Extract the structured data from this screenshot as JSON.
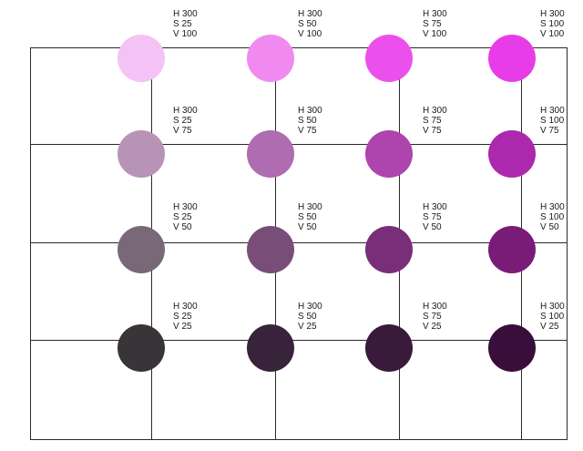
{
  "swatches": [
    {
      "h": "H 300",
      "s": "S 25",
      "v": "V 100",
      "color": "#f4c2f4"
    },
    {
      "h": "H 300",
      "s": "S 50",
      "v": "V 100",
      "color": "#f08af0"
    },
    {
      "h": "H 300",
      "s": "S 75",
      "v": "V 100",
      "color": "#ec50ec"
    },
    {
      "h": "H 300",
      "s": "S 100",
      "v": "V 100",
      "color": "#e83ce8"
    },
    {
      "h": "H 300",
      "s": "S 25",
      "v": "V 75",
      "color": "#b893b8"
    },
    {
      "h": "H 300",
      "s": "S 50",
      "v": "V 75",
      "color": "#b06cb0"
    },
    {
      "h": "H 300",
      "s": "S 75",
      "v": "V 75",
      "color": "#ae44ae"
    },
    {
      "h": "H 300",
      "s": "S 100",
      "v": "V 75",
      "color": "#ac28ac"
    },
    {
      "h": "H 300",
      "s": "S 25",
      "v": "V 50",
      "color": "#786878"
    },
    {
      "h": "H 300",
      "s": "S 50",
      "v": "V 50",
      "color": "#784e78"
    },
    {
      "h": "H 300",
      "s": "S 75",
      "v": "V 50",
      "color": "#782e78"
    },
    {
      "h": "H 300",
      "s": "S 100",
      "v": "V 50",
      "color": "#781c78"
    },
    {
      "h": "H 300",
      "s": "S 25",
      "v": "V 25",
      "color": "#383438"
    },
    {
      "h": "H 300",
      "s": "S 50",
      "v": "V 25",
      "color": "#38243a"
    },
    {
      "h": "H 300",
      "s": "S 75",
      "v": "V 25",
      "color": "#3a1a3a"
    },
    {
      "h": "H 300",
      "s": "S 100",
      "v": "V 25",
      "color": "#3a0e3a"
    }
  ]
}
